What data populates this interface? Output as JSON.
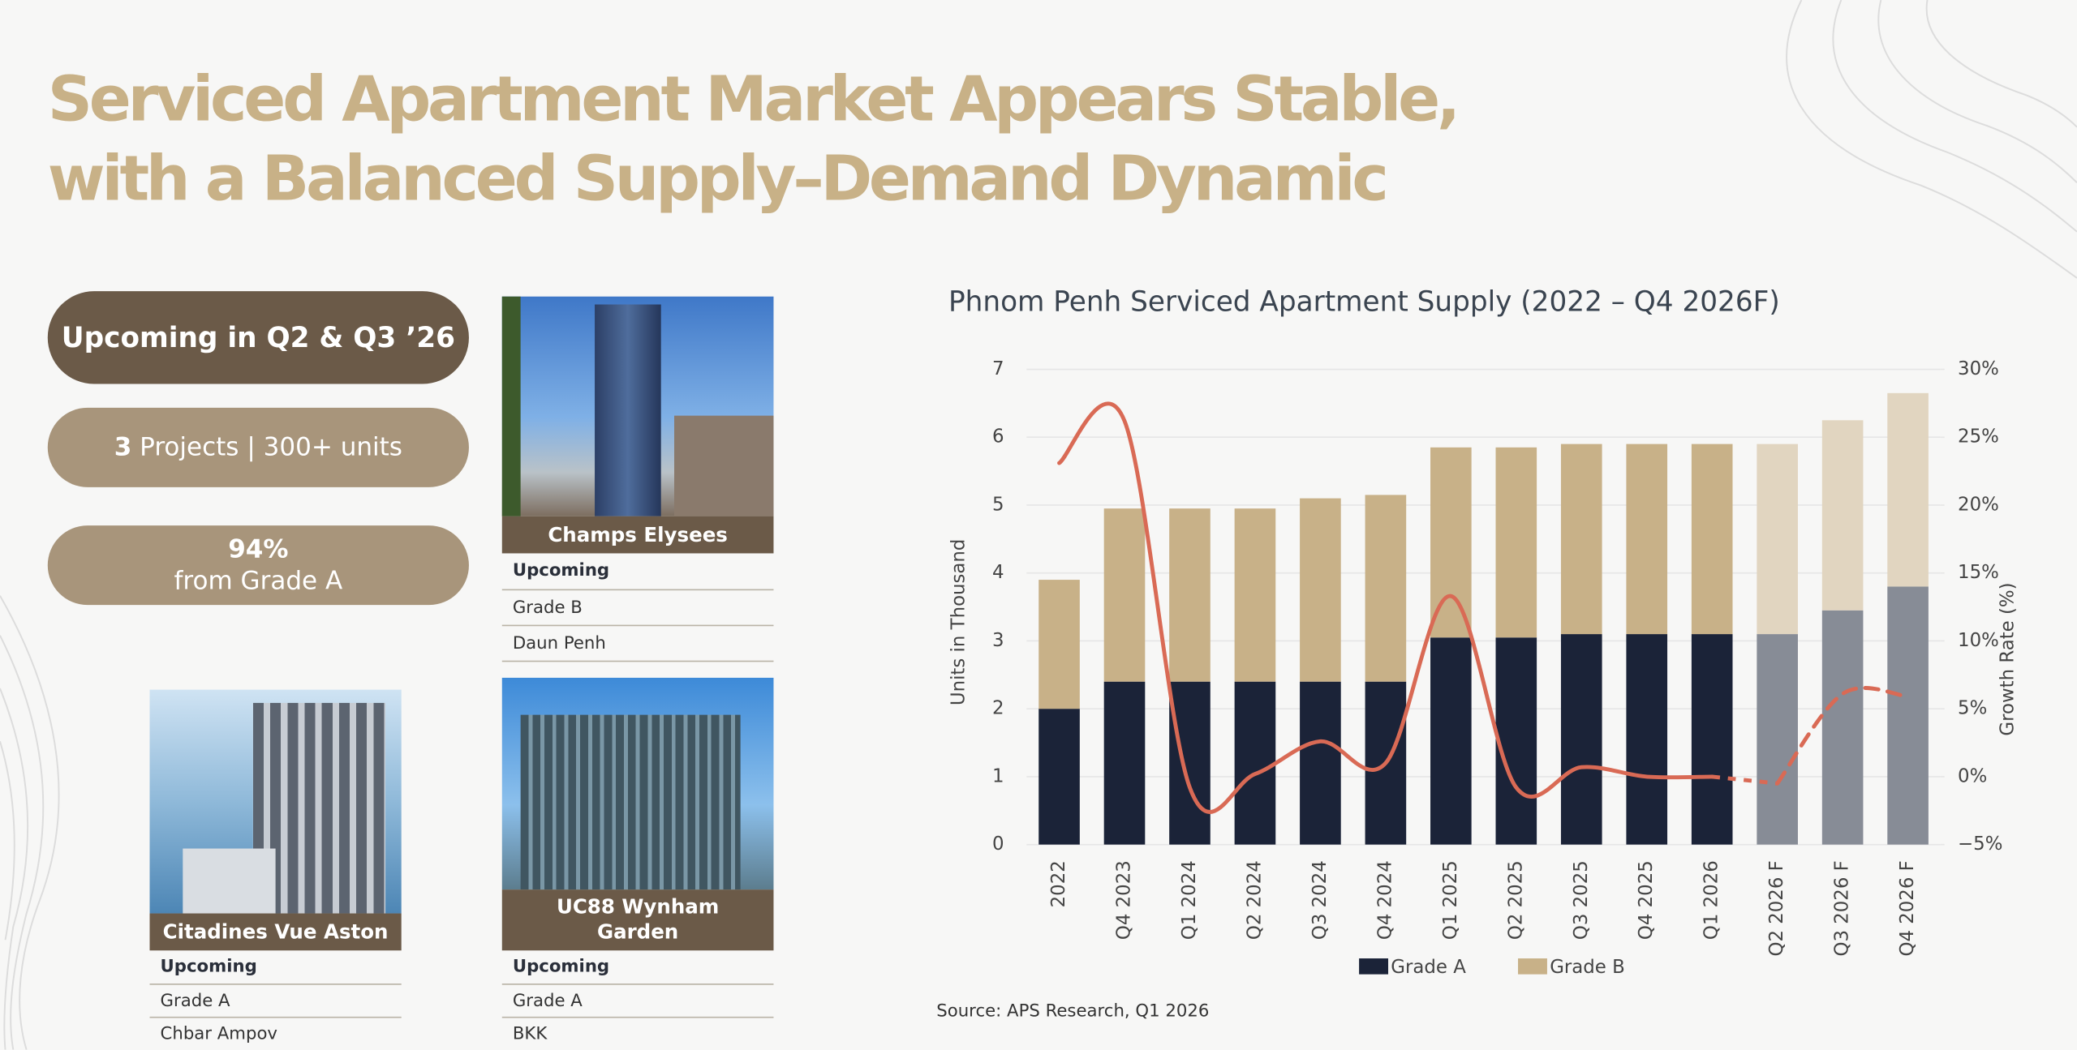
{
  "header": {
    "title": [
      "Serviced Apartment Market Appears Stable,",
      "with a Balanced Supply–Demand Dynamic"
    ]
  },
  "highlights": [
    {
      "text": "Upcoming in Q2 & Q3 ’26"
    },
    {
      "count": "3",
      "text": "Projects | 300+ units"
    },
    {
      "count": "94%",
      "text": "from Grade A"
    }
  ],
  "projects": [
    {
      "name": "Champs Elysees",
      "status": "Upcoming",
      "grade": "Grade B",
      "location": "Daun Penh"
    },
    {
      "name": "UC88 Wynham Garden",
      "status": "Upcoming",
      "grade": "Grade A",
      "location": "BKK"
    },
    {
      "name": "Citadines Vue Aston",
      "status": "Upcoming",
      "grade": "Grade A",
      "location": "Chbar Ampov"
    }
  ],
  "chart_data": {
    "type": "bar",
    "stacked": true,
    "title": "Phnom Penh Serviced Apartment Supply (2022 – Q4 2026F)",
    "y_label": "Units in Thousand",
    "y2_label": "Growth Rate (%)",
    "source": "Source: APS Research, Q1 2026",
    "categories": [
      "2022",
      "Q4 2023",
      "Q1 2024",
      "Q2 2024",
      "Q3 2024",
      "Q4 2024",
      "Q1 2025",
      "Q2 2025",
      "Q3 2025",
      "Q4 2025",
      "Q1 2026",
      "Q2 2026 F",
      "Q3 2026 F",
      "Q4 2026 F"
    ],
    "forecast_from": 11,
    "series": [
      {
        "name": "Grade A",
        "color": "#1b2338",
        "forecast_color": "#878c96",
        "values": [
          2.0,
          2.4,
          2.4,
          2.4,
          2.4,
          2.4,
          3.05,
          3.05,
          3.1,
          3.1,
          3.1,
          3.1,
          3.45,
          3.8
        ]
      },
      {
        "name": "Grade B",
        "color": "#c8b188",
        "forecast_color": "#e1d5c0",
        "values": [
          1.9,
          2.55,
          2.55,
          2.55,
          2.7,
          2.75,
          2.8,
          2.8,
          2.8,
          2.8,
          2.8,
          2.8,
          2.8,
          2.85
        ]
      },
      {
        "type": "line",
        "axis": "y2",
        "color": "#d96a55",
        "values": [
          23.1,
          26.2,
          -0.8,
          0.2,
          2.6,
          1.0,
          13.3,
          -0.8,
          0.7,
          0.0,
          0.0,
          -0.5,
          6.1,
          5.9
        ]
      }
    ],
    "ylim": [
      0,
      7
    ],
    "yticks": [
      0,
      1,
      2,
      3,
      4,
      5,
      6,
      7
    ],
    "y2lim": [
      -5,
      30
    ],
    "y2ticks": [
      {
        "value": -5,
        "label": "−5%"
      },
      {
        "value": 0,
        "label": "0%"
      },
      {
        "value": 5,
        "label": "5%"
      },
      {
        "value": 10,
        "label": "10%"
      },
      {
        "value": 15,
        "label": "15%"
      },
      {
        "value": 20,
        "label": "20%"
      },
      {
        "value": 25,
        "label": "25%"
      },
      {
        "value": 30,
        "label": "30%"
      }
    ],
    "grid": true,
    "legend": "bottom"
  }
}
